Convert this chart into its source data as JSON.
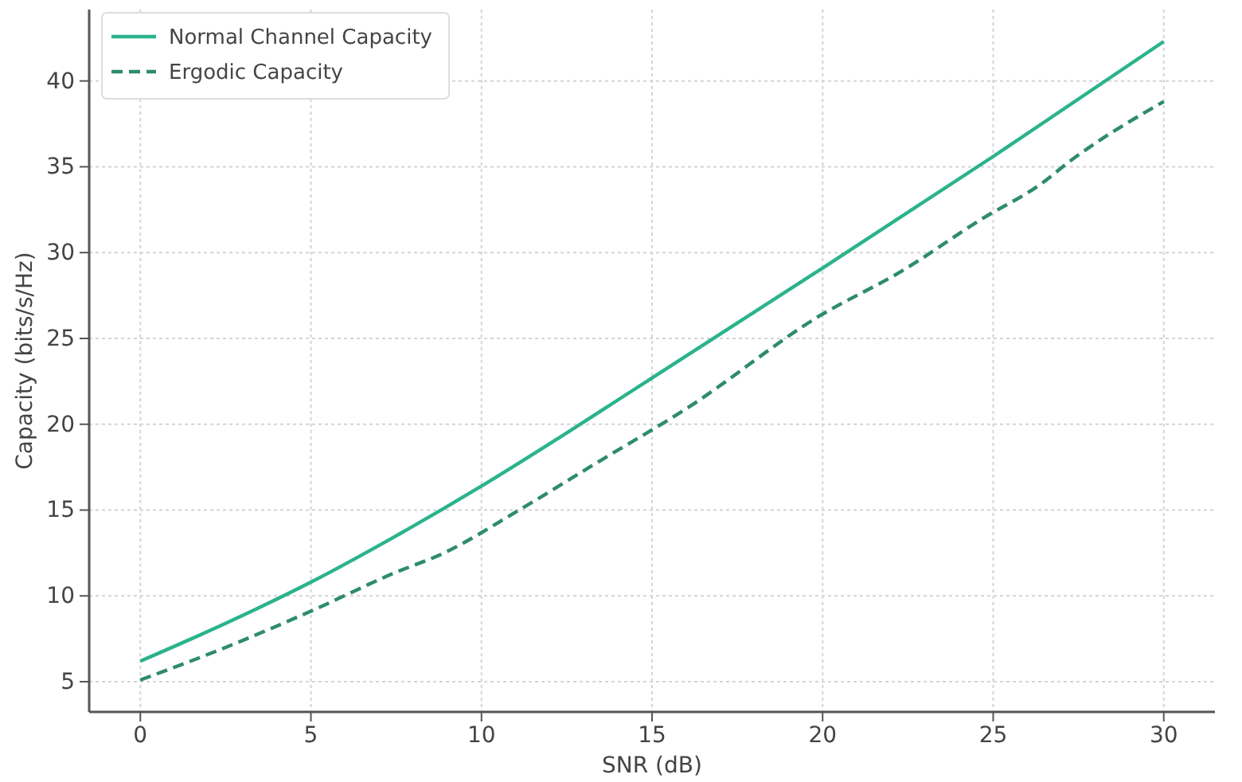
{
  "chart_data": {
    "type": "line",
    "xlabel": "SNR (dB)",
    "ylabel": "Capacity (bits/s/Hz)",
    "xlim": [
      -1.5,
      31.5
    ],
    "xticks": [
      0,
      5,
      10,
      15,
      20,
      25,
      30
    ],
    "ylim": [
      3.24,
      44.16
    ],
    "yticks": [
      5,
      10,
      15,
      20,
      25,
      30,
      35,
      40
    ],
    "grid": true,
    "legend": "top left",
    "series": [
      {
        "name": "Normal Channel Capacity",
        "color": "#2bb38c",
        "line_style": "solid",
        "x": [
          0,
          2.5,
          5,
          7.5,
          10,
          12.5,
          15,
          20,
          25,
          30
        ],
        "values": [
          6.2,
          8.4,
          10.8,
          13.5,
          16.4,
          19.5,
          22.7,
          29.1,
          35.6,
          42.3
        ]
      },
      {
        "name": "Ergodic Capacity",
        "color": "#2e8b6e",
        "line_style": "dashed",
        "x": [
          0,
          2.5,
          5.1,
          7.4,
          8.9,
          11.1,
          13.5,
          16,
          19.9,
          22.3,
          24.7,
          26.4,
          27.3,
          30
        ],
        "values": [
          5.1,
          7.0,
          9.2,
          11.3,
          12.5,
          15.0,
          17.9,
          20.9,
          26.3,
          28.9,
          32.0,
          34.0,
          35.4,
          38.8
        ]
      }
    ]
  }
}
